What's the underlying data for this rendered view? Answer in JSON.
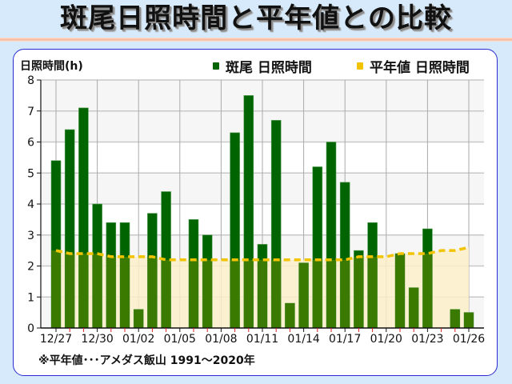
{
  "header": {
    "title": "斑尾日照時間と平年値との比較"
  },
  "colors": {
    "observed": "#006400",
    "observed_over_normal": "#3a7a00",
    "normal_line": "#f2c400",
    "normal_fill": "#fcefc8",
    "panel_border": "#2a2ad0",
    "background": "#d6eafb"
  },
  "footnote": "※平年値･･･アメダス飯山 1991〜2020年",
  "chart_data": {
    "type": "bar",
    "title": "斑尾日照時間と平年値との比較",
    "ylabel": "日照時間(h)",
    "xlabel": "",
    "ylim": [
      0,
      8
    ],
    "yticks": [
      0,
      1,
      2,
      3,
      4,
      5,
      6,
      7,
      8
    ],
    "grid": true,
    "legend_position": "top-right",
    "legend": [
      "斑尾 日照時間",
      "平年値 日照時間"
    ],
    "categories": [
      "12/27",
      "12/28",
      "12/29",
      "12/30",
      "12/31",
      "01/01",
      "01/02",
      "01/03",
      "01/04",
      "01/05",
      "01/06",
      "01/07",
      "01/08",
      "01/09",
      "01/10",
      "01/11",
      "01/12",
      "01/13",
      "01/14",
      "01/15",
      "01/16",
      "01/17",
      "01/18",
      "01/19",
      "01/20",
      "01/21",
      "01/22",
      "01/23",
      "01/24",
      "01/25",
      "01/26"
    ],
    "xtick_labels": [
      "12/27",
      "12/30",
      "01/02",
      "01/05",
      "01/08",
      "01/11",
      "01/14",
      "01/17",
      "01/20",
      "01/23",
      "01/26"
    ],
    "series": [
      {
        "name": "斑尾 日照時間",
        "type": "bar",
        "values": [
          5.4,
          6.4,
          7.1,
          4.0,
          3.4,
          3.4,
          0.6,
          3.7,
          4.4,
          0,
          3.5,
          3.0,
          0,
          6.3,
          7.5,
          2.7,
          6.7,
          0.8,
          2.1,
          5.2,
          6.0,
          4.7,
          2.5,
          3.4,
          0,
          2.4,
          1.3,
          3.2,
          0,
          0.6,
          0.5
        ]
      },
      {
        "name": "平年値 日照時間",
        "type": "area-dashed-line",
        "values": [
          2.5,
          2.4,
          2.4,
          2.4,
          2.3,
          2.3,
          2.3,
          2.3,
          2.2,
          2.2,
          2.2,
          2.2,
          2.2,
          2.2,
          2.2,
          2.2,
          2.2,
          2.2,
          2.2,
          2.2,
          2.2,
          2.2,
          2.3,
          2.3,
          2.3,
          2.4,
          2.4,
          2.4,
          2.5,
          2.5,
          2.6
        ]
      }
    ]
  }
}
